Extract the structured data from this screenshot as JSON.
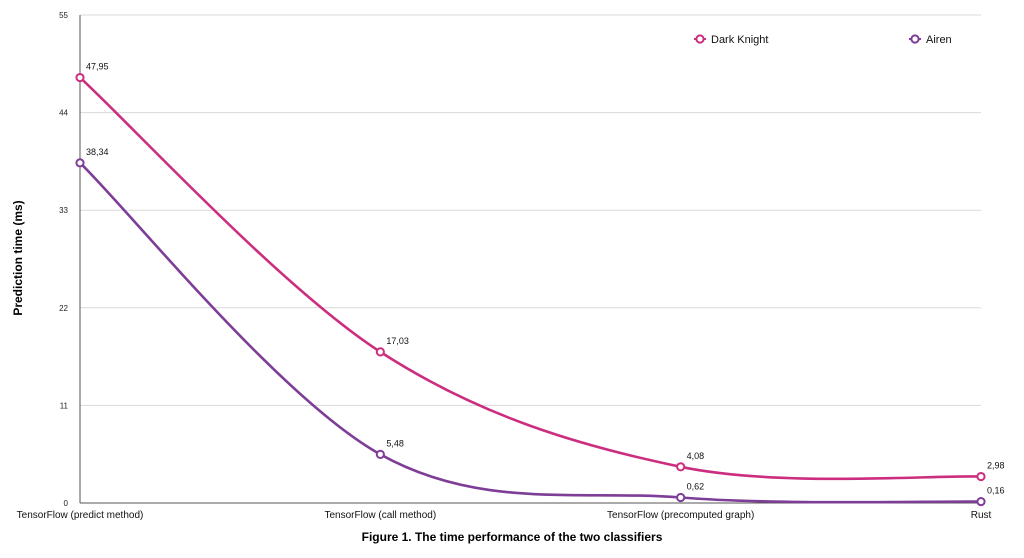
{
  "chart_data": {
    "type": "line",
    "title": "",
    "caption": "Figure 1. The time performance of the two classifiers",
    "xlabel": "",
    "ylabel": "Prediction time (ms)",
    "categories": [
      "TensorFlow (predict method)",
      "TensorFlow (call method)",
      "TensorFlow (precomputed graph)",
      "Rust"
    ],
    "ylim": [
      0,
      55
    ],
    "yticks": [
      "0",
      "11",
      "22",
      "33",
      "44",
      "55"
    ],
    "grid": true,
    "legend_position": "top-right",
    "series": [
      {
        "name": "Dark Knight",
        "color": "#cc2e7f",
        "values": [
          47.95,
          17.03,
          4.08,
          2.98
        ],
        "labels": [
          "47,95",
          "17,03",
          "4,08",
          "2,98"
        ]
      },
      {
        "name": "Airen",
        "color": "#7e3d96",
        "values": [
          38.34,
          5.48,
          0.62,
          0.16
        ],
        "labels": [
          "38,34",
          "5,48",
          "0,62",
          "0,16"
        ]
      }
    ]
  }
}
